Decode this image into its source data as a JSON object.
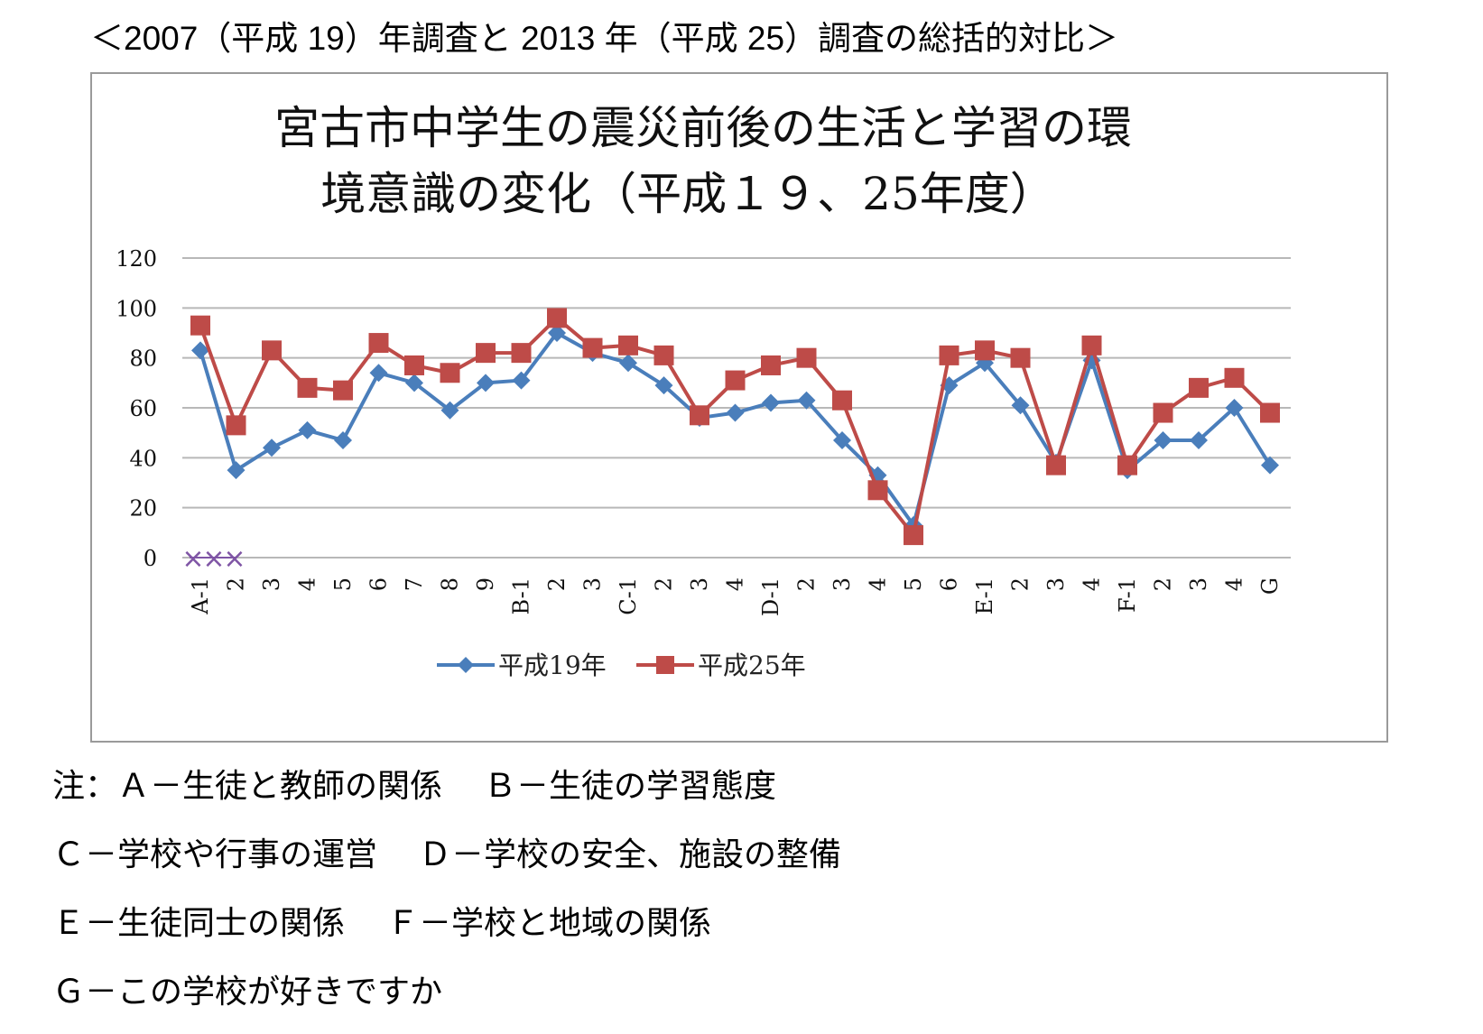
{
  "heading": "＜2007（平成 19）年調査と 2013 年（平成 25）調査の総括的対比＞",
  "chart_data": {
    "type": "line",
    "title_line1": "宮古市中学生の震災前後の生活と学習の環",
    "title_line2": "境意識の変化（平成１９、25年度）",
    "categories": [
      "A-1",
      "2",
      "3",
      "4",
      "5",
      "6",
      "7",
      "8",
      "9",
      "B-1",
      "2",
      "3",
      "C-1",
      "2",
      "3",
      "4",
      "D-1",
      "2",
      "3",
      "4",
      "5",
      "6",
      "E-1",
      "2",
      "3",
      "4",
      "F-1",
      "2",
      "3",
      "4",
      "G"
    ],
    "ylim": [
      0,
      120
    ],
    "yticks": [
      "0",
      "20",
      "40",
      "60",
      "80",
      "100",
      "120"
    ],
    "grid": true,
    "legend_position": "bottom",
    "series": [
      {
        "name": "平成19年",
        "color": "#4a7ebb",
        "marker": "diamond",
        "values": [
          83,
          35,
          44,
          51,
          47,
          74,
          70,
          59,
          70,
          71,
          90,
          82,
          78,
          69,
          56,
          58,
          62,
          63,
          47,
          33,
          13,
          69,
          78,
          61,
          38,
          79,
          35,
          47,
          47,
          60,
          37
        ]
      },
      {
        "name": "平成25年",
        "color": "#be4b48",
        "marker": "square",
        "values": [
          93,
          53,
          83,
          68,
          67,
          86,
          77,
          74,
          82,
          82,
          96,
          84,
          85,
          81,
          57,
          71,
          77,
          80,
          63,
          27,
          9,
          81,
          83,
          80,
          37,
          85,
          37,
          58,
          68,
          72,
          58
        ]
      }
    ],
    "annotation_marks": {
      "color": "#7f55a5",
      "symbol": "×",
      "count": 3
    }
  },
  "notes": [
    [
      "注：Ａ－生徒と教師の関係",
      "Ｂ－生徒の学習態度"
    ],
    [
      "Ｃ－学校や行事の運営",
      "Ｄ－学校の安全、施設の整備"
    ],
    [
      "Ｅ－生徒同士の関係",
      "Ｆ－学校と地域の関係"
    ],
    [
      "Ｇ－この学校が好きですか"
    ]
  ]
}
